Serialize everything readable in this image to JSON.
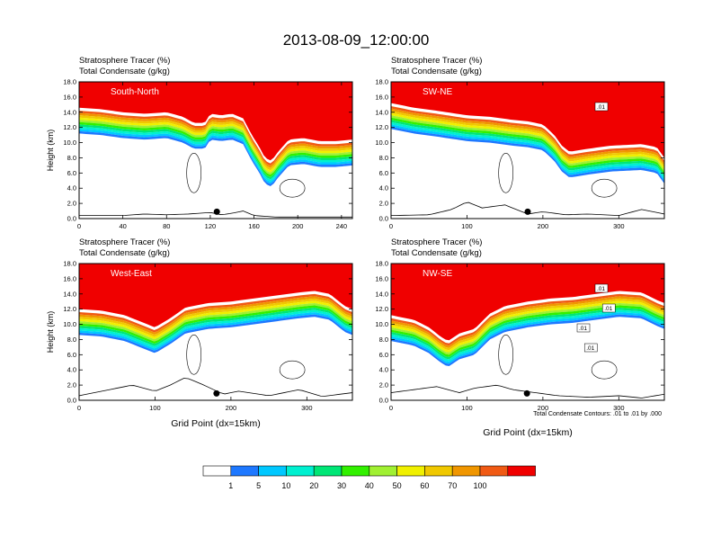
{
  "title": "2013-08-09_12:00:00",
  "colorbar": {
    "colors": [
      "#ffffff",
      "#1e78ff",
      "#00c8ff",
      "#00f0d0",
      "#00e676",
      "#32f000",
      "#a0f032",
      "#f0f000",
      "#f0c800",
      "#f09600",
      "#f05a14",
      "#f00000"
    ],
    "labels": [
      "1",
      "5",
      "10",
      "20",
      "30",
      "40",
      "50",
      "60",
      "70",
      "100"
    ]
  },
  "footnote": "Total Condensate Contours: .01 to .01 by .000",
  "chart_data": [
    {
      "id": "south-north",
      "type": "heatmap",
      "label": "South-North",
      "header1": "Stratosphere Tracer   (%)",
      "header2": "Total Condensate   (g/kg)",
      "ylabel": "Height (km)",
      "xlabel": "",
      "xlim": [
        0,
        250
      ],
      "ylim": [
        0,
        18
      ],
      "xticks": [
        "0",
        "40",
        "80",
        "120",
        "160",
        "200",
        "240"
      ],
      "yticks": [
        "0.0",
        "2.0",
        "4.0",
        "6.0",
        "8.0",
        "10.0",
        "12.0",
        "14.0",
        "16.0",
        "18.0"
      ],
      "tropopause_km": [
        [
          0,
          14.6
        ],
        [
          20,
          14.4
        ],
        [
          40,
          14.0
        ],
        [
          60,
          13.8
        ],
        [
          80,
          14.0
        ],
        [
          95,
          13.4
        ],
        [
          105,
          12.6
        ],
        [
          115,
          12.6
        ],
        [
          120,
          13.8
        ],
        [
          130,
          13.6
        ],
        [
          140,
          13.8
        ],
        [
          150,
          13.2
        ],
        [
          158,
          11.0
        ],
        [
          165,
          9.4
        ],
        [
          170,
          8.0
        ],
        [
          176,
          7.6
        ],
        [
          182,
          8.8
        ],
        [
          192,
          10.4
        ],
        [
          205,
          10.6
        ],
        [
          220,
          10.2
        ],
        [
          235,
          10.2
        ],
        [
          250,
          10.4
        ]
      ],
      "terrain_km": [
        [
          0,
          0.4
        ],
        [
          40,
          0.4
        ],
        [
          60,
          0.6
        ],
        [
          80,
          0.5
        ],
        [
          100,
          0.6
        ],
        [
          120,
          0.8
        ],
        [
          130,
          0.5
        ],
        [
          140,
          0.7
        ],
        [
          150,
          1.0
        ],
        [
          160,
          0.4
        ],
        [
          180,
          0.2
        ],
        [
          250,
          0.2
        ]
      ],
      "marker_x": 126,
      "contour_labels": []
    },
    {
      "id": "sw-ne",
      "type": "heatmap",
      "label": "SW-NE",
      "header1": "Stratosphere Tracer   (%)",
      "header2": "Total Condensate   (g/kg)",
      "ylabel": "",
      "xlabel": "",
      "xlim": [
        0,
        360
      ],
      "ylim": [
        0,
        18
      ],
      "xticks": [
        "0",
        "100",
        "200",
        "300"
      ],
      "yticks": [
        "0.0",
        "2.0",
        "4.0",
        "6.0",
        "8.0",
        "10.0",
        "12.0",
        "14.0",
        "16.0",
        "18.0"
      ],
      "tropopause_km": [
        [
          0,
          15.2
        ],
        [
          30,
          14.6
        ],
        [
          60,
          14.2
        ],
        [
          100,
          13.6
        ],
        [
          130,
          13.4
        ],
        [
          160,
          13.0
        ],
        [
          180,
          12.8
        ],
        [
          200,
          12.4
        ],
        [
          215,
          11.0
        ],
        [
          225,
          9.6
        ],
        [
          235,
          8.8
        ],
        [
          260,
          9.2
        ],
        [
          290,
          9.6
        ],
        [
          330,
          9.8
        ],
        [
          350,
          9.4
        ],
        [
          360,
          8.0
        ]
      ],
      "terrain_km": [
        [
          0,
          0.4
        ],
        [
          50,
          0.5
        ],
        [
          80,
          1.2
        ],
        [
          100,
          2.2
        ],
        [
          120,
          1.4
        ],
        [
          150,
          1.8
        ],
        [
          180,
          0.6
        ],
        [
          200,
          0.9
        ],
        [
          230,
          0.5
        ],
        [
          260,
          0.6
        ],
        [
          300,
          0.4
        ],
        [
          330,
          1.2
        ],
        [
          360,
          0.6
        ]
      ],
      "marker_x": 180,
      "contour_labels": [
        ".01"
      ]
    },
    {
      "id": "west-east",
      "type": "heatmap",
      "label": "West-East",
      "header1": "Stratosphere Tracer   (%)",
      "header2": "Total Condensate   (g/kg)",
      "ylabel": "Height (km)",
      "xlabel": "Grid Point (dx=15km)",
      "xlim": [
        0,
        360
      ],
      "ylim": [
        0,
        18
      ],
      "xticks": [
        "0",
        "100",
        "200",
        "300"
      ],
      "yticks": [
        "0.0",
        "2.0",
        "4.0",
        "6.0",
        "8.0",
        "10.0",
        "12.0",
        "14.0",
        "16.0",
        "18.0"
      ],
      "tropopause_km": [
        [
          0,
          12.0
        ],
        [
          30,
          11.8
        ],
        [
          60,
          11.2
        ],
        [
          90,
          10.0
        ],
        [
          100,
          9.6
        ],
        [
          120,
          10.8
        ],
        [
          140,
          12.2
        ],
        [
          170,
          12.8
        ],
        [
          200,
          13.0
        ],
        [
          230,
          13.4
        ],
        [
          260,
          13.8
        ],
        [
          290,
          14.2
        ],
        [
          310,
          14.4
        ],
        [
          330,
          14.0
        ],
        [
          350,
          12.4
        ],
        [
          360,
          12.0
        ]
      ],
      "terrain_km": [
        [
          0,
          0.6
        ],
        [
          30,
          1.2
        ],
        [
          50,
          1.6
        ],
        [
          70,
          2.0
        ],
        [
          100,
          1.2
        ],
        [
          120,
          2.0
        ],
        [
          140,
          3.0
        ],
        [
          160,
          2.2
        ],
        [
          190,
          0.8
        ],
        [
          210,
          1.2
        ],
        [
          250,
          0.6
        ],
        [
          290,
          1.4
        ],
        [
          320,
          0.5
        ],
        [
          360,
          1.0
        ]
      ],
      "marker_x": 181,
      "contour_labels": []
    },
    {
      "id": "nw-se",
      "type": "heatmap",
      "label": "NW-SE",
      "header1": "Stratosphere Tracer   (%)",
      "header2": "Total Condensate   (g/kg)",
      "ylabel": "",
      "xlabel": "Grid Point (dx=15km)",
      "xlim": [
        0,
        360
      ],
      "ylim": [
        0,
        18
      ],
      "xticks": [
        "0",
        "100",
        "200",
        "300"
      ],
      "yticks": [
        "0.0",
        "2.0",
        "4.0",
        "6.0",
        "8.0",
        "10.0",
        "12.0",
        "14.0",
        "16.0",
        "18.0"
      ],
      "tropopause_km": [
        [
          0,
          11.2
        ],
        [
          30,
          10.6
        ],
        [
          50,
          9.6
        ],
        [
          65,
          8.4
        ],
        [
          75,
          7.8
        ],
        [
          90,
          8.8
        ],
        [
          110,
          9.4
        ],
        [
          130,
          11.4
        ],
        [
          150,
          12.4
        ],
        [
          180,
          13.0
        ],
        [
          210,
          13.4
        ],
        [
          240,
          13.6
        ],
        [
          270,
          14.0
        ],
        [
          300,
          14.4
        ],
        [
          330,
          14.2
        ],
        [
          350,
          13.2
        ],
        [
          360,
          12.8
        ]
      ],
      "terrain_km": [
        [
          0,
          1.0
        ],
        [
          30,
          1.4
        ],
        [
          60,
          1.8
        ],
        [
          90,
          1.0
        ],
        [
          110,
          1.6
        ],
        [
          140,
          2.0
        ],
        [
          160,
          1.4
        ],
        [
          190,
          1.0
        ],
        [
          220,
          0.6
        ],
        [
          260,
          0.4
        ],
        [
          300,
          0.6
        ],
        [
          330,
          0.3
        ],
        [
          360,
          0.8
        ]
      ],
      "marker_x": 179,
      "contour_labels": [
        ".01",
        ".01",
        ".01",
        ".01"
      ]
    }
  ]
}
